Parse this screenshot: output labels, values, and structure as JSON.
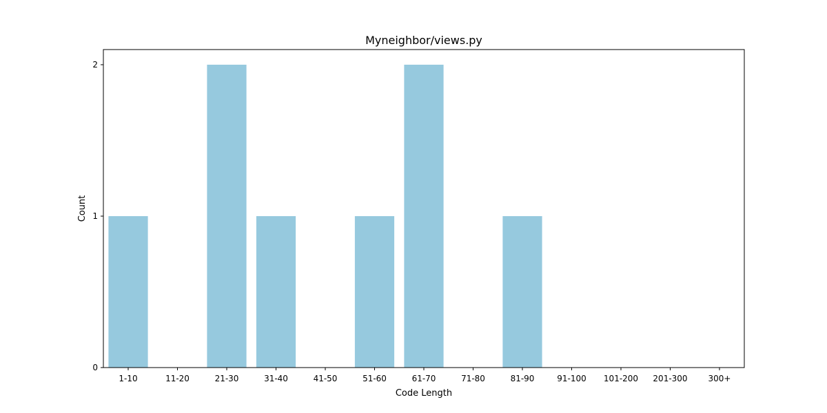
{
  "chart_data": {
    "type": "bar",
    "title": "Myneighbor/views.py",
    "xlabel": "Code Length",
    "ylabel": "Count",
    "categories": [
      "1-10",
      "11-20",
      "21-30",
      "31-40",
      "41-50",
      "51-60",
      "61-70",
      "71-80",
      "81-90",
      "91-100",
      "101-200",
      "201-300",
      "300+"
    ],
    "values": [
      1,
      0,
      2,
      1,
      0,
      1,
      2,
      0,
      1,
      0,
      0,
      0,
      0
    ],
    "yticks": [
      "0",
      "1",
      "2"
    ],
    "ylim": [
      0,
      2.1
    ],
    "grid": false,
    "legend": "none",
    "bar_color": "#96c9de"
  }
}
